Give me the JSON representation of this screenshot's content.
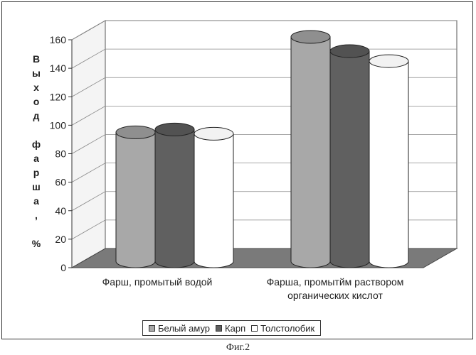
{
  "chart_data": {
    "type": "bar",
    "categories": [
      "Фарш, промытый водой",
      "Фарша, промытйм раствором органических кислот"
    ],
    "series": [
      {
        "name": "Белый амур",
        "values": [
          95,
          162
        ],
        "color": "#a8a8a8"
      },
      {
        "name": "Карп",
        "values": [
          97,
          152
        ],
        "color": "#606060"
      },
      {
        "name": "Толстолобик",
        "values": [
          94,
          145
        ],
        "color": "#ffffff"
      }
    ],
    "ylabel": "Выход фарша, %",
    "ylim": [
      0,
      160
    ],
    "yticks": [
      "0",
      "20",
      "40",
      "60",
      "80",
      "100",
      "120",
      "140",
      "160"
    ],
    "grid": true,
    "legend": "bottom"
  },
  "ylabel_chars": [
    "В",
    "ы",
    "х",
    "о",
    "д",
    "",
    "ф",
    "а",
    "р",
    "ш",
    "а",
    ",",
    "",
    "%"
  ],
  "category_lines": [
    [
      "Фарш, промытый водой"
    ],
    [
      "Фарша, промытйм раствором",
      "органических кислот"
    ]
  ],
  "caption": "Фиг.2"
}
